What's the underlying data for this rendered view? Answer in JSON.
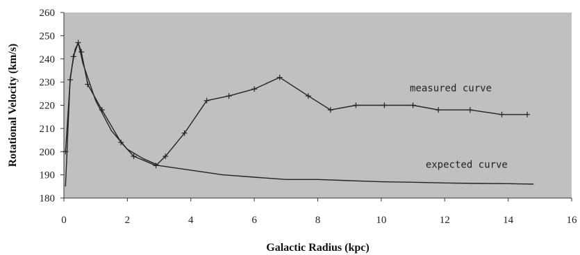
{
  "chart_data": {
    "type": "line",
    "title": "",
    "xlabel": "Galactic Radius (kpc)",
    "ylabel": "Rotational Velocity (km/s)",
    "xlim": [
      0,
      16
    ],
    "ylim": [
      180,
      260
    ],
    "xticks": [
      0,
      2,
      4,
      6,
      8,
      10,
      12,
      14,
      16
    ],
    "yticks": [
      180,
      190,
      200,
      210,
      220,
      230,
      240,
      250,
      260
    ],
    "grid": false,
    "legend": "none",
    "series": [
      {
        "name": "measured curve",
        "markers": true,
        "color": "#222222",
        "points": [
          [
            0.05,
            200
          ],
          [
            0.2,
            231
          ],
          [
            0.3,
            241
          ],
          [
            0.45,
            247
          ],
          [
            0.55,
            243
          ],
          [
            0.75,
            229
          ],
          [
            1.2,
            218
          ],
          [
            1.8,
            204
          ],
          [
            2.2,
            198
          ],
          [
            2.9,
            194
          ],
          [
            3.2,
            198
          ],
          [
            3.8,
            208
          ],
          [
            4.5,
            222
          ],
          [
            5.2,
            224
          ],
          [
            6.0,
            227
          ],
          [
            6.8,
            232
          ],
          [
            7.7,
            224
          ],
          [
            8.4,
            218
          ],
          [
            9.2,
            220
          ],
          [
            10.1,
            220
          ],
          [
            11.0,
            220
          ],
          [
            11.8,
            218
          ],
          [
            12.8,
            218
          ],
          [
            13.8,
            216
          ],
          [
            14.6,
            216
          ]
        ]
      },
      {
        "name": "expected curve",
        "markers": false,
        "color": "#222222",
        "points": [
          [
            0.05,
            185
          ],
          [
            0.2,
            232
          ],
          [
            0.35,
            244
          ],
          [
            0.45,
            247
          ],
          [
            0.6,
            238
          ],
          [
            1.0,
            222
          ],
          [
            1.5,
            209
          ],
          [
            2.0,
            201
          ],
          [
            2.5,
            197
          ],
          [
            3.0,
            194
          ],
          [
            4.0,
            192
          ],
          [
            5.0,
            190
          ],
          [
            6.0,
            189
          ],
          [
            7.0,
            188
          ],
          [
            8.0,
            188
          ],
          [
            9.0,
            187.5
          ],
          [
            10.0,
            187
          ],
          [
            11.0,
            186.8
          ],
          [
            12.0,
            186.5
          ],
          [
            13.0,
            186.3
          ],
          [
            14.0,
            186.2
          ],
          [
            14.8,
            186
          ]
        ]
      }
    ],
    "annotations": [
      {
        "text": "measured curve",
        "x": 10.9,
        "y": 226
      },
      {
        "text": "expected curve",
        "x": 11.4,
        "y": 193
      }
    ]
  },
  "colors": {
    "plot_background": "#c0c0c0",
    "line": "#222222",
    "axis": "#333333"
  }
}
